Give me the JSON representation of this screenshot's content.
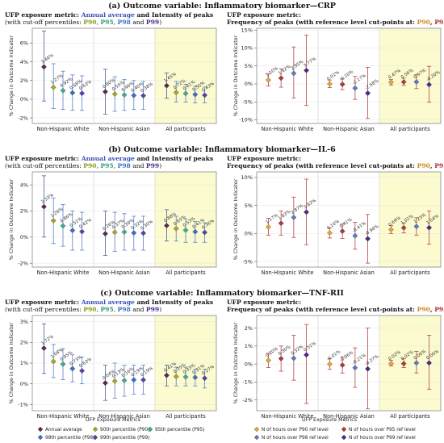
{
  "colors": {
    "annual": "#5b2a4f",
    "p90": "#a6a820",
    "p95": "#3fae8a",
    "p98": "#3f6fc4",
    "p99": "#5a3fb3",
    "f90": "#e8a33a",
    "f95": "#b03a3a",
    "f98": "#5b7ac8",
    "f99": "#4b2a8a",
    "shade": "#fbfbcf"
  },
  "sections": [
    {
      "title": "(a) Outcome variable: Inflammatory biomarker—CRP",
      "left": {
        "line1": [
          "UFP exposure metric: ",
          "Annual average",
          " and Intensity of peaks"
        ],
        "line2": [
          "(with cut-off percentiles: ",
          "P90",
          ", ",
          "P95",
          ", ",
          "P98",
          " and ",
          "P99",
          ")"
        ]
      },
      "right": {
        "line1": [
          "UFP exposure metric:"
        ],
        "line2": [
          "Frequency of peaks (with reference level cut-points at: ",
          "P90",
          ", ",
          "P95",
          ", ",
          "P98",
          " and ",
          "P99",
          ")"
        ]
      }
    },
    {
      "title": "(b) Outcome variable: Inflammatory biomarker—IL-6",
      "left": {
        "line1": [
          "UFP exposure metric: ",
          "Annual average",
          " and Intensity of peaks"
        ],
        "line2": [
          "(with cut-off percentiles: ",
          "P90",
          ", ",
          "P95",
          ", ",
          "P98",
          " and ",
          "P99",
          ")"
        ]
      },
      "right": {
        "line1": [
          "UFP exposure metric:"
        ],
        "line2": [
          "Frequency of peaks (with reference level cut-points at: ",
          "P90",
          ", ",
          "P95",
          ", ",
          "P98",
          " and ",
          "P99",
          ")"
        ]
      }
    },
    {
      "title": "(c) Outcome variable: Inflammatory biomarker—TNF-RII",
      "left": {
        "line1": [
          "UFP exposure metric: ",
          "Annual average",
          " and Intensity of peaks"
        ],
        "line2": [
          "(with cut-off percentiles: ",
          "P90",
          ", ",
          "P95",
          ", ",
          "P98",
          " and ",
          "P99",
          ")"
        ]
      },
      "right": {
        "line1": [
          "UFP exposure metric:"
        ],
        "line2": [
          "Frequency of peaks (with reference level cut-points at: ",
          "P90",
          ", ",
          "P95",
          ", ",
          "P98",
          " and ",
          "P99",
          ")"
        ]
      }
    }
  ],
  "chart_data": [
    {
      "id": "a-left",
      "type": "scatter",
      "categories": [
        "Non-Hispanic White",
        "Non-Hispanic Asian",
        "All participants"
      ],
      "ylabel": "% Change in Outcome Indicator",
      "ylim": [
        -2.6,
        7.6
      ],
      "yticks": [
        -2,
        0,
        2,
        4,
        6
      ],
      "tick_suffix": "%",
      "shaded_category": "All participants",
      "series": [
        {
          "name": "Annual average",
          "est": [
            3.46,
            0.8,
            1.45
          ],
          "lo": [
            -0.2,
            -1.6,
            0.1
          ],
          "hi": [
            7.3,
            3.2,
            2.8
          ]
        },
        {
          "name": "90th percentile (P90)",
          "est": [
            1.27,
            0.55,
            0.72
          ],
          "lo": [
            -1.0,
            -1.3,
            -0.3
          ],
          "hi": [
            3.8,
            2.4,
            1.9
          ]
        },
        {
          "name": "95th percentile (P95)",
          "est": [
            0.92,
            0.46,
            0.61
          ],
          "lo": [
            -1.1,
            -1.2,
            -0.3
          ],
          "hi": [
            3.0,
            2.1,
            1.6
          ]
        },
        {
          "name": "98th percentile (P98)",
          "est": [
            0.68,
            0.4,
            0.5
          ],
          "lo": [
            -1.2,
            -1.1,
            -0.4
          ],
          "hi": [
            2.6,
            2.0,
            1.4
          ]
        },
        {
          "name": "99th percentile (P99)",
          "est": [
            0.63,
            0.38,
            0.43
          ],
          "lo": [
            -1.2,
            -1.1,
            -0.4
          ],
          "hi": [
            2.5,
            1.9,
            1.3
          ]
        }
      ],
      "labels": [
        [
          "3.46%",
          "1.27%",
          "0.92%",
          "0.68%",
          "0.63%"
        ],
        [
          "0.80%",
          "0.55%",
          "0.46%",
          "0.40%",
          "0.38%"
        ],
        [
          "1.45%",
          "0.72%",
          "0.61%",
          "0.50%",
          "0.43%"
        ]
      ]
    },
    {
      "id": "a-right",
      "type": "scatter",
      "categories": [
        "Non-Hispanic White",
        "Non-Hispanic Asian",
        "All participants"
      ],
      "ylabel": "% Change in Outcome Indicator",
      "ylim": [
        -11,
        15.5
      ],
      "yticks": [
        -10,
        -5,
        0,
        5,
        10,
        15
      ],
      "tick_suffix": "%",
      "shaded_category": "All participants",
      "series": [
        {
          "name": "N of hours over P90 ref level",
          "est": [
            1.1,
            0.01,
            0.47
          ],
          "lo": [
            -0.6,
            -1.0,
            -0.3
          ],
          "hi": [
            2.9,
            1.1,
            1.2
          ]
        },
        {
          "name": "N of hours over P95 ref level",
          "est": [
            1.62,
            -0.1,
            0.56
          ],
          "lo": [
            -0.9,
            -1.6,
            -0.4
          ],
          "hi": [
            4.2,
            1.4,
            1.6
          ]
        },
        {
          "name": "N of hours over P98 ref level",
          "est": [
            2.95,
            -1.17,
            0.57
          ],
          "lo": [
            -3.9,
            -4.3,
            -1.3
          ],
          "hi": [
            10.3,
            2.1,
            2.6
          ]
        },
        {
          "name": "N of hours over P99 ref level",
          "est": [
            3.77,
            -2.58,
            -0.2
          ],
          "lo": [
            -6.0,
            -9.6,
            -5.1
          ],
          "hi": [
            13.6,
            4.6,
            4.9
          ]
        }
      ],
      "labels": [
        [
          "1.10%",
          "1.62%",
          "2.95%",
          "3.77%"
        ],
        [
          "0.01%",
          "-0.10%",
          "-1.17%",
          "-2.58%"
        ],
        [
          "0.47%",
          "0.56%",
          "0.57%",
          "-0.20%"
        ]
      ]
    },
    {
      "id": "b-left",
      "type": "scatter",
      "categories": [
        "Non-Hispanic White",
        "Non-Hispanic Asian",
        "All participants"
      ],
      "ylabel": "% Change in Outcome Indicator",
      "ylim": [
        -2.3,
        5.0
      ],
      "yticks": [
        -2,
        0,
        2,
        4
      ],
      "tick_suffix": "%",
      "shaded_category": "All participants",
      "series": [
        {
          "name": "Annual average",
          "est": [
            2.33,
            0.26,
            0.88
          ],
          "lo": [
            0.0,
            -1.4,
            -0.3
          ],
          "hi": [
            4.7,
            2.0,
            2.1
          ]
        },
        {
          "name": "90th percentile (P90)",
          "est": [
            1.26,
            0.37,
            0.65
          ],
          "lo": [
            -0.5,
            -1.1,
            -0.3
          ],
          "hi": [
            3.0,
            1.9,
            1.6
          ]
        },
        {
          "name": "95th percentile (P95)",
          "est": [
            0.86,
            0.39,
            0.53
          ],
          "lo": [
            -0.7,
            -1.0,
            -0.4
          ],
          "hi": [
            2.5,
            1.8,
            1.4
          ]
        },
        {
          "name": "98th percentile (P98)",
          "est": [
            0.51,
            0.32,
            0.41
          ],
          "lo": [
            -1.0,
            -1.0,
            -0.4
          ],
          "hi": [
            2.0,
            1.6,
            1.2
          ]
        },
        {
          "name": "99th percentile (P99)",
          "est": [
            0.42,
            0.3,
            0.36
          ],
          "lo": [
            -1.0,
            -1.0,
            -0.4
          ],
          "hi": [
            1.9,
            1.6,
            1.1
          ]
        }
      ],
      "labels": [
        [
          "2.33%",
          "1.26%",
          "0.86%",
          "0.51%",
          "0.42%"
        ],
        [
          "0.26%",
          "0.37%",
          "0.39%",
          "0.32%",
          "0.30%"
        ],
        [
          "0.88%",
          "0.65%",
          "0.53%",
          "0.41%",
          "0.36%"
        ]
      ]
    },
    {
      "id": "b-right",
      "type": "scatter",
      "categories": [
        "Non-Hispanic White",
        "Non-Hispanic Asian",
        "All participants"
      ],
      "ylabel": "% Change in Outcome Indicator",
      "ylim": [
        -6,
        11
      ],
      "yticks": [
        -5,
        0,
        5,
        10
      ],
      "tick_suffix": "%",
      "shaded_category": "All participants",
      "series": [
        {
          "name": "N of hours over P90 ref level",
          "est": [
            1.17,
            0.1,
            0.69
          ],
          "lo": [
            -0.3,
            -0.8,
            0.0
          ],
          "hi": [
            2.7,
            1.0,
            1.4
          ]
        },
        {
          "name": "N of hours over P95 ref level",
          "est": [
            1.83,
            0.41,
            1.01
          ],
          "lo": [
            -0.3,
            -0.9,
            0.1
          ],
          "hi": [
            4.0,
            1.7,
            1.9
          ]
        },
        {
          "name": "N of hours over P98 ref level",
          "est": [
            2.87,
            -0.41,
            1.25
          ],
          "lo": [
            -0.7,
            -2.8,
            -0.3
          ],
          "hi": [
            6.5,
            2.0,
            2.8
          ]
        },
        {
          "name": "N of hours over P99 ref level",
          "est": [
            3.82,
            -0.94,
            1.04
          ],
          "lo": [
            -2.0,
            -5.3,
            -1.9
          ],
          "hi": [
            9.7,
            3.4,
            4.0
          ]
        }
      ],
      "labels": [
        [
          "1.17%",
          "1.83%",
          "2.87%",
          "3.82%"
        ],
        [
          "0.10%",
          "0.41%",
          "-0.41%",
          "-0.94%"
        ],
        [
          "0.69%",
          "1.01%",
          "1.25%",
          "1.04%"
        ]
      ]
    },
    {
      "id": "c-left",
      "type": "scatter",
      "categories": [
        "Non-Hispanic White",
        "Non-Hispanic Asian",
        "All participants"
      ],
      "ylabel": "% Change in Outcome Indicator",
      "ylim": [
        -1.3,
        3.3
      ],
      "yticks": [
        -1,
        0,
        1,
        2,
        3
      ],
      "tick_suffix": "%",
      "shaded_category": "All participants",
      "series": [
        {
          "name": "Annual average",
          "est": [
            1.72,
            0.04,
            0.41
          ],
          "lo": [
            0.5,
            -0.8,
            -0.1
          ],
          "hi": [
            2.9,
            0.9,
            0.9
          ]
        },
        {
          "name": "90th percentile (P90)",
          "est": [
            1.08,
            0.13,
            0.35
          ],
          "lo": [
            0.3,
            -0.7,
            -0.1
          ],
          "hi": [
            1.9,
            1.0,
            0.8
          ]
        },
        {
          "name": "95th percentile (P95)",
          "est": [
            0.95,
            0.16,
            0.33
          ],
          "lo": [
            0.2,
            -0.6,
            -0.1
          ],
          "hi": [
            1.7,
            0.9,
            0.8
          ]
        },
        {
          "name": "98th percentile (P98)",
          "est": [
            0.73,
            0.19,
            0.31
          ],
          "lo": [
            0.1,
            -0.5,
            -0.1
          ],
          "hi": [
            1.4,
            0.9,
            0.7
          ]
        },
        {
          "name": "99th percentile (P99)",
          "est": [
            0.63,
            0.19,
            0.27
          ],
          "lo": [
            0.0,
            -0.5,
            -0.2
          ],
          "hi": [
            1.3,
            0.9,
            0.7
          ]
        }
      ],
      "labels": [
        [
          "1.72%",
          "1.08%",
          "0.95%",
          "0.73%",
          "0.63%"
        ],
        [
          "0.04%",
          "0.13%",
          "0.16%",
          "0.19%",
          "0.19%"
        ],
        [
          "0.41%",
          "0.35%",
          "0.33%",
          "0.31%",
          "0.27%"
        ]
      ]
    },
    {
      "id": "c-right",
      "type": "scatter",
      "categories": [
        "Non-Hispanic White",
        "Non-Hispanic Asian",
        "All participants"
      ],
      "ylabel": "% Change in Outcome Indicator",
      "ylim": [
        -2.6,
        2.7
      ],
      "yticks": [
        -2,
        -1,
        0,
        1,
        2
      ],
      "tick_suffix": "%",
      "shaded_category": "All participants",
      "series": [
        {
          "name": "N of hours over P90 ref level",
          "est": [
            0.2,
            -0.01,
            0.02
          ],
          "lo": [
            -0.2,
            -0.3,
            -0.1
          ],
          "hi": [
            0.6,
            0.3,
            0.2
          ]
        },
        {
          "name": "N of hours over P95 ref level",
          "est": [
            0.3,
            -0.06,
            0.02
          ],
          "lo": [
            -0.4,
            -0.5,
            -0.2
          ],
          "hi": [
            1.0,
            0.4,
            0.3
          ]
        },
        {
          "name": "N of hours over P98 ref level",
          "est": [
            0.32,
            -0.21,
            0.06
          ],
          "lo": [
            -0.9,
            -1.3,
            -0.5
          ],
          "hi": [
            1.6,
            0.9,
            0.7
          ]
        },
        {
          "name": "N of hours over P99 ref level",
          "est": [
            0.51,
            -0.27,
            0.06
          ],
          "lo": [
            -2.2,
            -2.5,
            -1.4
          ],
          "hi": [
            2.2,
            2.0,
            1.6
          ]
        }
      ],
      "labels": [
        [
          "0.20%",
          "0.30%",
          "0.32%",
          "0.51%"
        ],
        [
          "-0.01%",
          "-0.06%",
          "-0.21%",
          "-0.27%"
        ],
        [
          "0.02%",
          "0.02%",
          "0.06%",
          "0.06%"
        ]
      ]
    }
  ],
  "legends": {
    "left": {
      "title": "UFP Exposure Metrics",
      "items": [
        "Annual average",
        "90th percentile (P90)",
        "95th percentile (P95)",
        "98th percentile (P98)",
        "99th percentile (P99)"
      ]
    },
    "right": {
      "title": "UFP Exposure Metrics",
      "items": [
        "N of hours over P90 ref level",
        "N of hours over P95 ref level",
        "N of hours over P98 ref level",
        "N of hours over P99 ref level"
      ]
    }
  }
}
